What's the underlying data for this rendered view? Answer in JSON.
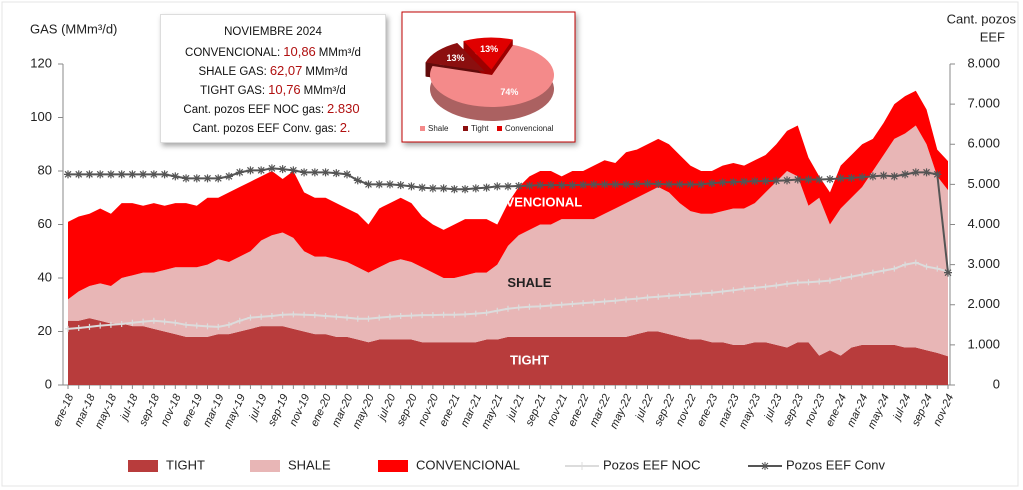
{
  "chart_data": [
    {
      "type": "area",
      "y_label": "GAS (MMm³/d)",
      "y2_label": [
        "Cant. pozos",
        "EEF"
      ],
      "categories": [
        "ene-18",
        null,
        "mar-18",
        null,
        "may-18",
        null,
        "jul-18",
        null,
        "sep-18",
        null,
        "nov-18",
        null,
        "ene-19",
        null,
        "mar-19",
        null,
        "may-19",
        null,
        "jul-19",
        null,
        "sep-19",
        null,
        "nov-19",
        null,
        "ene-20",
        null,
        "mar-20",
        null,
        "may-20",
        null,
        "jul-20",
        null,
        "sep-20",
        null,
        "nov-20",
        null,
        "ene-21",
        null,
        "mar-21",
        null,
        "may-21",
        null,
        "jul-21",
        null,
        "sep-21",
        null,
        "nov-21",
        null,
        "ene-22",
        null,
        "mar-22",
        null,
        "may-22",
        null,
        "jul-22",
        null,
        "sep-22",
        null,
        "nov-22",
        null,
        "ene-23",
        null,
        "mar-23",
        null,
        "may-23",
        null,
        "jul-23",
        null,
        "sep-23",
        null,
        "nov-23",
        null,
        "ene-24",
        null,
        "mar-24",
        null,
        "may-24",
        null,
        "jul-24",
        null,
        "sep-24",
        null,
        "nov-24"
      ],
      "series": [
        {
          "name": "TIGHT",
          "kind": "area",
          "color": "#b83c3c",
          "label_color": "#ffffff",
          "values": [
            24,
            24,
            25,
            24,
            23,
            23,
            22,
            22,
            21,
            20,
            19,
            18,
            18,
            18,
            19,
            19,
            20,
            21,
            22,
            22,
            22,
            21,
            20,
            19,
            19,
            18,
            18,
            17,
            16,
            17,
            17,
            17,
            17,
            16,
            16,
            16,
            16,
            16,
            16,
            17,
            17,
            18,
            18,
            18,
            18,
            18,
            18,
            18,
            18,
            18,
            18,
            18,
            18,
            19,
            20,
            20,
            19,
            18,
            17,
            17,
            16,
            16,
            15,
            15,
            16,
            16,
            15,
            14,
            16,
            16,
            11,
            13,
            11,
            14,
            15,
            15,
            15,
            15,
            14,
            14,
            13,
            12,
            10.76
          ]
        },
        {
          "name": "SHALE",
          "kind": "area",
          "color": "#e8b6b6",
          "label_color": "#222222",
          "values": [
            8,
            11,
            12,
            14,
            14,
            17,
            19,
            20,
            21,
            23,
            25,
            26,
            26,
            27,
            28,
            27,
            28,
            29,
            32,
            34,
            35,
            34,
            30,
            29,
            29,
            29,
            28,
            27,
            26,
            27,
            29,
            30,
            29,
            28,
            26,
            24,
            24,
            25,
            26,
            25,
            28,
            34,
            38,
            40,
            42,
            42,
            44,
            44,
            44,
            44,
            46,
            48,
            50,
            51,
            52,
            54,
            53,
            50,
            48,
            47,
            48,
            49,
            51,
            51,
            52,
            56,
            61,
            66,
            62,
            51,
            59,
            47,
            55,
            56,
            59,
            65,
            71,
            77,
            80,
            83,
            77,
            66,
            62.07
          ]
        },
        {
          "name": "CONVENCIONAL",
          "kind": "area",
          "color": "#ff0000",
          "label_color": "#ffffff",
          "values": [
            29,
            28,
            27,
            28,
            27,
            28,
            27,
            25,
            26,
            24,
            24,
            24,
            23,
            25,
            23,
            26,
            26,
            26,
            24,
            24,
            20,
            25,
            22,
            22,
            22,
            21,
            20,
            20,
            18,
            22,
            22,
            23,
            22,
            19,
            18,
            18,
            20,
            21,
            20,
            20,
            15,
            16,
            18,
            20,
            20,
            20,
            16,
            18,
            18,
            20,
            20,
            17,
            19,
            18,
            18,
            18,
            18,
            18,
            17,
            16,
            16,
            17,
            17,
            16,
            16,
            14,
            14,
            15,
            19,
            18,
            8,
            12,
            16,
            16,
            16,
            12,
            12,
            13,
            14,
            13,
            13,
            10,
            10.86
          ]
        },
        {
          "name": "Pozos EEF NOC",
          "kind": "line",
          "axis": "y2",
          "color": "#dcdcdc",
          "marker": "plus",
          "values": [
            1400,
            1420,
            1450,
            1480,
            1500,
            1520,
            1550,
            1580,
            1600,
            1580,
            1550,
            1500,
            1480,
            1460,
            1450,
            1500,
            1600,
            1680,
            1700,
            1720,
            1750,
            1760,
            1750,
            1740,
            1720,
            1700,
            1680,
            1650,
            1650,
            1680,
            1700,
            1720,
            1730,
            1740,
            1740,
            1750,
            1750,
            1760,
            1780,
            1800,
            1850,
            1900,
            1930,
            1950,
            1960,
            1980,
            2000,
            2020,
            2040,
            2060,
            2080,
            2100,
            2130,
            2150,
            2180,
            2200,
            2220,
            2240,
            2260,
            2280,
            2300,
            2330,
            2360,
            2400,
            2420,
            2450,
            2480,
            2520,
            2550,
            2560,
            2580,
            2600,
            2650,
            2700,
            2750,
            2800,
            2850,
            2900,
            3000,
            3050,
            2950,
            2900,
            2830
          ]
        },
        {
          "name": "Pozos EEF Conv",
          "kind": "line",
          "axis": "y2",
          "color": "#555555",
          "marker": "star",
          "values": [
            5250,
            5250,
            5250,
            5250,
            5250,
            5250,
            5250,
            5250,
            5250,
            5250,
            5200,
            5150,
            5150,
            5150,
            5150,
            5200,
            5300,
            5350,
            5350,
            5400,
            5380,
            5350,
            5300,
            5300,
            5300,
            5280,
            5250,
            5100,
            5000,
            5000,
            5000,
            4980,
            4950,
            4920,
            4900,
            4900,
            4880,
            4880,
            4900,
            4920,
            4950,
            4950,
            4960,
            4970,
            4980,
            4980,
            4980,
            4980,
            4990,
            5000,
            5000,
            5000,
            5000,
            5010,
            5020,
            5010,
            5000,
            5000,
            5000,
            5000,
            5030,
            5050,
            5060,
            5070,
            5080,
            5080,
            5090,
            5100,
            5120,
            5120,
            5120,
            5130,
            5150,
            5160,
            5180,
            5200,
            5220,
            5200,
            5250,
            5300,
            5300,
            5250,
            2800
          ]
        }
      ],
      "ylim": [
        0,
        120
      ],
      "yticks": [
        0,
        20,
        40,
        60,
        80,
        100,
        120
      ],
      "y2lim": [
        0,
        8000
      ],
      "y2ticks": [
        0,
        {
          "value": 1000,
          "label": "1.000"
        },
        {
          "value": 2000,
          "label": "2.000"
        },
        {
          "value": 3000,
          "label": "3.000"
        },
        {
          "value": 4000,
          "label": "4.000"
        },
        {
          "value": 5000,
          "label": "5.000"
        },
        {
          "value": 6000,
          "label": "6.000"
        },
        {
          "value": 7000,
          "label": "7.000"
        },
        {
          "value": 8000,
          "label": "8.000"
        }
      ],
      "legend": "bottom"
    },
    {
      "type": "pie",
      "categories": [
        "Shale",
        "Tight",
        "Convencional"
      ],
      "values": [
        74,
        13,
        13
      ],
      "value_labels": [
        "74%",
        "13%",
        "13%"
      ],
      "colors": [
        "#f48a8a",
        "#8b0f0f",
        "#e00000"
      ],
      "legend": "bottom"
    }
  ],
  "info_box": {
    "title": "NOVIEMBRE 2024",
    "lines": [
      {
        "label": "CONVENCIONAL:",
        "value": "10,86",
        "unit": "MMm³/d"
      },
      {
        "label": "SHALE GAS:",
        "value": "62,07",
        "unit": "MMm³/d"
      },
      {
        "label": "TIGHT GAS:",
        "value": "10,76",
        "unit": "MMm³/d"
      },
      {
        "label": "Cant. pozos EEF NOC gas:",
        "value": "2.830"
      },
      {
        "label": "Cant. pozos EEF Conv. gas:",
        "value": "2."
      }
    ]
  }
}
